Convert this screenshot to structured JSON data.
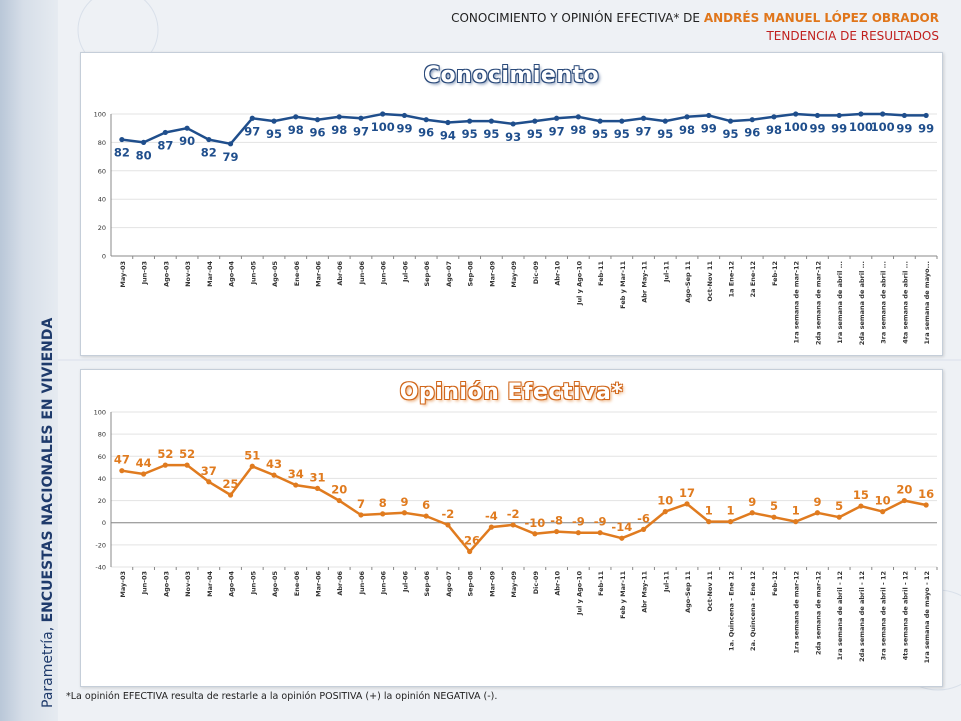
{
  "header": {
    "title_prefix": "CONOCIMIENTO Y OPINIÓN EFECTIVA* DE",
    "title_name": "ANDRÉS MANUEL LÓPEZ OBRADOR",
    "subtitle": "TENDENCIA DE RESULTADOS"
  },
  "sidebar": {
    "brand": "Parametría,",
    "text": "ENCUESTAS NACIONALES EN VIVIENDA"
  },
  "footnote": "*La opinión EFECTIVA resulta de restarle a la opinión POSITIVA (+) la opinión NEGATIVA (-).",
  "colors": {
    "series1": "#1f4e8c",
    "series2": "#e07b1f"
  },
  "chart_data": [
    {
      "type": "line",
      "title": "Conocimiento",
      "grid": true,
      "ylim": [
        0,
        100
      ],
      "yticks": [
        0,
        20,
        40,
        60,
        80,
        100
      ],
      "categories": [
        "May-03",
        "Jun-03",
        "Ago-03",
        "Nov-03",
        "Mar-04",
        "Ago-04",
        "Jun-05",
        "Ago-05",
        "Ene-06",
        "Mar-06",
        "Abr-06",
        "Jun-06",
        "Jun-06",
        "Jul-06",
        "Sep-06",
        "Ago-07",
        "Sep-08",
        "Mar-09",
        "May-09",
        "Dic-09",
        "Abr-10",
        "Jul y Ago-10",
        "Feb-11",
        "Feb y Mar-11",
        "Abr May-11",
        "Jul-11",
        "Ago-Sep 11",
        "Oct-Nov 11",
        "1a Ene-12",
        "2a Ene-12",
        "Feb-12",
        "1ra semana de mar-12",
        "2da semana de mar-12",
        "1ra semana de abril ...",
        "2da semana de abril ...",
        "3ra semana de abril ...",
        "4ta semana de abril ...",
        "1ra semana de mayo..."
      ],
      "series": [
        {
          "values": [
            82,
            80,
            87,
            90,
            82,
            79,
            97,
            95,
            98,
            96,
            98,
            97,
            100,
            99,
            96,
            94,
            95,
            95,
            93,
            95,
            97,
            98,
            95,
            95,
            97,
            95,
            98,
            99,
            95,
            96,
            98,
            100,
            99,
            99,
            100,
            100,
            99,
            99
          ]
        }
      ]
    },
    {
      "type": "line",
      "title": "Opinión Efectiva*",
      "grid": true,
      "ylim": [
        -40,
        100
      ],
      "yticks": [
        -40,
        -20,
        0,
        20,
        40,
        60,
        80,
        100
      ],
      "categories": [
        "May-03",
        "Jun-03",
        "Ago-03",
        "Nov-03",
        "Mar-04",
        "Ago-04",
        "Jun-05",
        "Ago-05",
        "Ene-06",
        "Mar-06",
        "Abr-06",
        "Jun-06",
        "Jun-06",
        "Jul-06",
        "Sep-06",
        "Ago-07",
        "Sep-08",
        "Mar-09",
        "May-09",
        "Dic-09",
        "Abr-10",
        "Jul y Ago-10",
        "Feb-11",
        "Feb y Mar-11",
        "Abr May-11",
        "Jul-11",
        "Ago-Sep 11",
        "Oct-Nov 11",
        "1a. Quincena - Ene 12",
        "2a. Quincena - Ene 12",
        "Feb-12",
        "1ra semana de mar-12",
        "2da semana de mar-12",
        "1ra semana de abril - 12",
        "2da semana de abril - 12",
        "3ra semana de abril - 12",
        "4ta semana de abril - 12",
        "1ra semana de mayo - 12"
      ],
      "series": [
        {
          "values": [
            47,
            44,
            52,
            52,
            37,
            25,
            51,
            43,
            34,
            31,
            20,
            7,
            8,
            9,
            6,
            -2,
            -26,
            -4,
            -2,
            -10,
            -8,
            -9,
            -9,
            -14,
            -6,
            10,
            17,
            1,
            1,
            9,
            5,
            1,
            9,
            5,
            15,
            10,
            20,
            16
          ]
        }
      ]
    }
  ]
}
